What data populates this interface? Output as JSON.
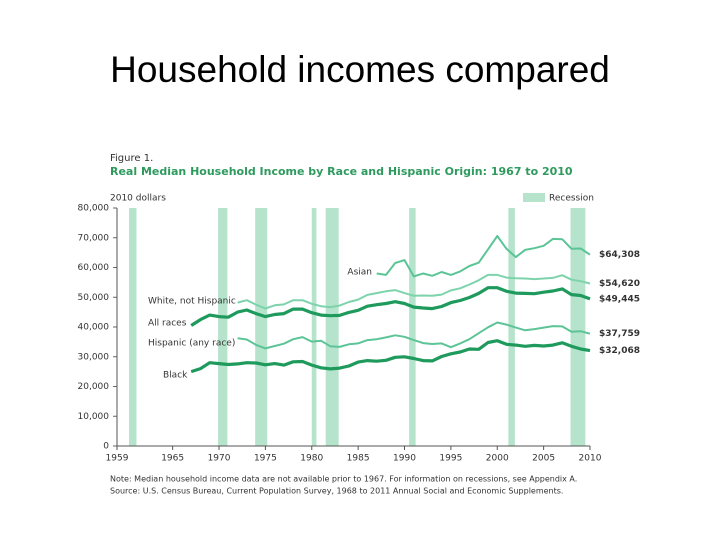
{
  "slide_title": "Household incomes compared",
  "chart_data": {
    "type": "line",
    "figure_label": "Figure 1.",
    "title": "Real Median Household Income by Race and Hispanic Origin: 1967 to 2010",
    "y_axis_label": "2010 dollars",
    "recession_label": "Recession",
    "notes": [
      "Note: Median household income data are not available prior to 1967. For information on recessions, see Appendix A.",
      "Source: U.S. Census Bureau, Current Population Survey, 1968 to 2011 Annual Social and Economic Supplements."
    ],
    "xlim": [
      1959,
      2010
    ],
    "xticks": [
      1959,
      1965,
      1970,
      1975,
      1980,
      1985,
      1990,
      1995,
      2000,
      2005,
      2010
    ],
    "ylim": [
      0,
      80000
    ],
    "yticks": [
      0,
      {
        "value": 10000,
        "label": "10,000"
      },
      {
        "value": 20000,
        "label": "20,000"
      },
      {
        "value": 30000,
        "label": "30,000"
      },
      {
        "value": 40000,
        "label": "40,000"
      },
      {
        "value": 50000,
        "label": "50,000"
      },
      {
        "value": 60000,
        "label": "60,000"
      },
      {
        "value": 70000,
        "label": "70,000"
      },
      {
        "value": 80000,
        "label": "80,000"
      }
    ],
    "recession_color": "#b5e3cc",
    "recessions": [
      [
        1960.3,
        1961.1
      ],
      [
        1969.9,
        1970.9
      ],
      [
        1973.9,
        1975.2
      ],
      [
        1980.0,
        1980.5
      ],
      [
        1981.5,
        1982.9
      ],
      [
        1990.5,
        1991.2
      ],
      [
        2001.2,
        2001.9
      ],
      [
        2007.9,
        2009.5
      ]
    ],
    "x": [
      1967,
      1968,
      1969,
      1970,
      1971,
      1972,
      1973,
      1974,
      1975,
      1976,
      1977,
      1978,
      1979,
      1980,
      1981,
      1982,
      1983,
      1984,
      1985,
      1986,
      1987,
      1988,
      1989,
      1990,
      1991,
      1992,
      1993,
      1994,
      1995,
      1996,
      1997,
      1998,
      1999,
      2000,
      2001,
      2002,
      2003,
      2004,
      2005,
      2006,
      2007,
      2008,
      2009,
      2010
    ],
    "series": [
      {
        "name": "Asian",
        "color": "#5cc497",
        "width": 2,
        "values": [
          null,
          null,
          null,
          null,
          null,
          null,
          null,
          null,
          null,
          null,
          null,
          null,
          null,
          null,
          null,
          null,
          null,
          null,
          null,
          null,
          58000,
          57500,
          61500,
          62500,
          57000,
          58000,
          57200,
          58500,
          57500,
          58700,
          60500,
          61600,
          66100,
          70600,
          66300,
          63500,
          65900,
          66500,
          67300,
          69600,
          69500,
          66300,
          66400,
          64308
        ],
        "value_labels": [
          null,
          null,
          null,
          null,
          null,
          null,
          null,
          null,
          null,
          null,
          null,
          null,
          null,
          null,
          null,
          null,
          null,
          null,
          null,
          null,
          null,
          null,
          null,
          null,
          null,
          null,
          null,
          null,
          null,
          null,
          null,
          null,
          null,
          null,
          null,
          null,
          null,
          null,
          null,
          null,
          null,
          null,
          null,
          "$64,308"
        ]
      },
      {
        "name": "White, not Hispanic",
        "color": "#7dd3ab",
        "width": 2,
        "values": [
          null,
          null,
          null,
          null,
          null,
          48200,
          49000,
          47500,
          46200,
          47300,
          47600,
          49000,
          49000,
          47800,
          47000,
          46700,
          47200,
          48400,
          49200,
          50800,
          51400,
          52000,
          52400,
          51400,
          50500,
          50600,
          50500,
          50900,
          52300,
          53000,
          54300,
          55700,
          57500,
          57500,
          56600,
          56400,
          56300,
          56100,
          56300,
          56500,
          57400,
          55900,
          55400,
          54620
        ],
        "value_labels": [
          null,
          null,
          null,
          null,
          null,
          null,
          null,
          null,
          null,
          null,
          null,
          null,
          null,
          null,
          null,
          null,
          null,
          null,
          null,
          null,
          null,
          null,
          null,
          null,
          null,
          null,
          null,
          null,
          null,
          null,
          null,
          null,
          null,
          null,
          null,
          null,
          null,
          null,
          null,
          null,
          null,
          null,
          null,
          "$54,620"
        ]
      },
      {
        "name": "All races",
        "color": "#1e9a5c",
        "width": 3.2,
        "values": [
          40500,
          42500,
          44000,
          43500,
          43300,
          45000,
          45700,
          44500,
          43500,
          44200,
          44500,
          46000,
          46000,
          44800,
          44000,
          43800,
          43900,
          44900,
          45600,
          47000,
          47500,
          47900,
          48500,
          47900,
          46700,
          46400,
          46200,
          46900,
          48200,
          48900,
          49900,
          51300,
          53200,
          53200,
          52000,
          51400,
          51300,
          51200,
          51700,
          52100,
          52800,
          50900,
          50600,
          49445
        ],
        "value_labels": [
          null,
          null,
          null,
          null,
          null,
          null,
          null,
          null,
          null,
          null,
          null,
          null,
          null,
          null,
          null,
          null,
          null,
          null,
          null,
          null,
          null,
          null,
          null,
          null,
          null,
          null,
          null,
          null,
          null,
          null,
          null,
          null,
          null,
          null,
          null,
          null,
          null,
          null,
          null,
          null,
          null,
          null,
          null,
          "$49,445"
        ]
      },
      {
        "name": "Hispanic (any race)",
        "color": "#5cc497",
        "width": 2,
        "values": [
          null,
          null,
          null,
          null,
          null,
          36200,
          35800,
          34000,
          32800,
          33600,
          34400,
          35900,
          36600,
          35100,
          35400,
          33500,
          33300,
          34200,
          34500,
          35600,
          35900,
          36500,
          37200,
          36700,
          35600,
          34600,
          34300,
          34500,
          33200,
          34500,
          35900,
          37900,
          39900,
          41500,
          40800,
          39800,
          38900,
          39300,
          39800,
          40300,
          40200,
          38400,
          38600,
          37759
        ],
        "value_labels": [
          null,
          null,
          null,
          null,
          null,
          null,
          null,
          null,
          null,
          null,
          null,
          null,
          null,
          null,
          null,
          null,
          null,
          null,
          null,
          null,
          null,
          null,
          null,
          null,
          null,
          null,
          null,
          null,
          null,
          null,
          null,
          null,
          null,
          null,
          null,
          null,
          null,
          null,
          null,
          null,
          null,
          null,
          null,
          "$37,759"
        ]
      },
      {
        "name": "Black",
        "color": "#1e9a5c",
        "width": 3.2,
        "values": [
          25000,
          26000,
          28000,
          27700,
          27400,
          27600,
          28000,
          27900,
          27300,
          27700,
          27200,
          28300,
          28400,
          27200,
          26300,
          25900,
          26200,
          26900,
          28200,
          28700,
          28500,
          28800,
          29800,
          30000,
          29400,
          28700,
          28600,
          30100,
          31000,
          31600,
          32600,
          32500,
          34800,
          35400,
          34200,
          33900,
          33500,
          33800,
          33600,
          33900,
          34700,
          33500,
          32600,
          32068
        ],
        "value_labels": [
          null,
          null,
          null,
          null,
          null,
          null,
          null,
          null,
          null,
          null,
          null,
          null,
          null,
          null,
          null,
          null,
          null,
          null,
          null,
          null,
          null,
          null,
          null,
          null,
          null,
          null,
          null,
          null,
          null,
          null,
          null,
          null,
          null,
          null,
          null,
          null,
          null,
          null,
          null,
          null,
          null,
          null,
          null,
          "$32,068"
        ]
      }
    ]
  }
}
